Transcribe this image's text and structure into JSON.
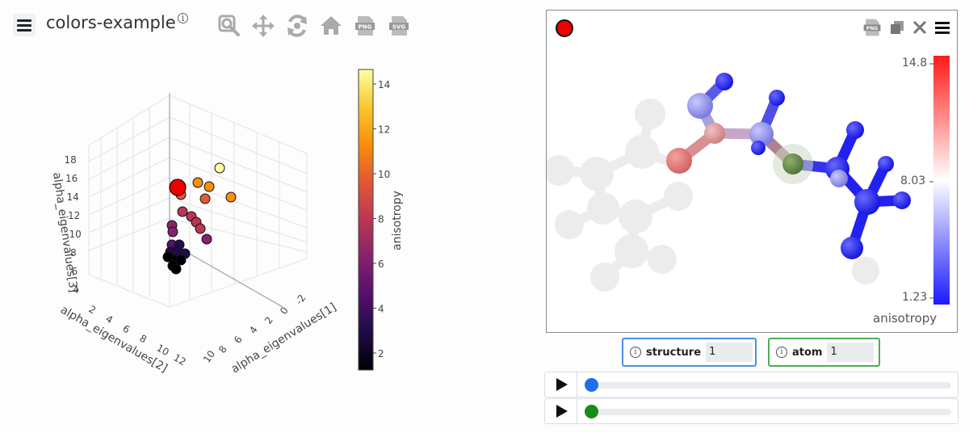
{
  "app": {
    "title": "colors-example",
    "info_symbol": "i"
  },
  "toolbar": {
    "items": [
      {
        "icon": "zoom-icon"
      },
      {
        "icon": "pan-icon"
      },
      {
        "icon": "orbit-rotation-icon"
      },
      {
        "icon": "reset-home-icon"
      },
      {
        "icon": "download-png-icon"
      },
      {
        "icon": "download-svg-icon"
      }
    ]
  },
  "plot": {
    "axis_x_label": "alpha_eigenvalues[1]",
    "axis_y_label": "alpha_eigenvalues[2]",
    "axis_z_label": "alpha_eigenvalues[3]",
    "x_ticks": [
      "-2",
      "0",
      "2",
      "4",
      "6",
      "8",
      "10"
    ],
    "y_ticks": [
      "2",
      "4",
      "6",
      "8",
      "10",
      "12"
    ],
    "z_ticks": [
      "4",
      "6",
      "8",
      "10",
      "12",
      "14",
      "16",
      "18"
    ],
    "colorbar_title": "anisotropy",
    "colorbar_ticks": [
      "2",
      "4",
      "6",
      "8",
      "10",
      "12",
      "14"
    ],
    "colorscale": [
      "#000004",
      "#1f0c48",
      "#550f6d",
      "#88226a",
      "#ba3655",
      "#e35933",
      "#f98e09",
      "#f9c932",
      "#fcffa4"
    ]
  },
  "viewer": {
    "selected_color": "#ee0000",
    "colorbar_max": "14.8",
    "colorbar_mid": "8.03",
    "colorbar_min": "1.23",
    "colorbar_title": "anisotropy",
    "tools": [
      {
        "icon": "download-png-icon"
      },
      {
        "icon": "copy-icon"
      },
      {
        "icon": "close-icon"
      },
      {
        "icon": "menu-icon"
      }
    ]
  },
  "selectors": {
    "structure": {
      "label": "structure",
      "value": "1",
      "border": "#4a90e2"
    },
    "atom": {
      "label": "atom",
      "value": "1",
      "border": "#4caf50"
    }
  },
  "players": [
    {
      "name": "structure-player",
      "knob_color": "#1f6fe8",
      "position": 0
    },
    {
      "name": "atom-player",
      "knob_color": "#1a8a1a",
      "position": 0
    }
  ]
}
